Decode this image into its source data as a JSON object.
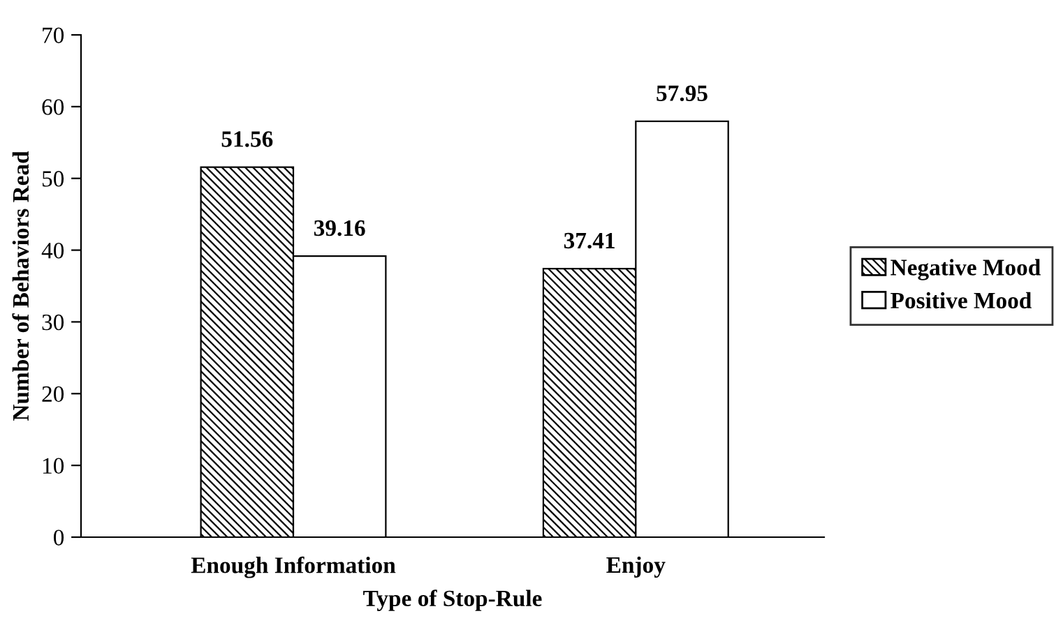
{
  "chart_data": {
    "type": "bar",
    "xlabel": "Type of Stop-Rule",
    "ylabel": "Number of Behaviors Read",
    "categories": [
      "Enough Information",
      "Enjoy"
    ],
    "series": [
      {
        "name": "Negative Mood",
        "color": "#000000",
        "values": [
          51.56,
          37.41
        ]
      },
      {
        "name": "Positive Mood",
        "color": "#ffffff",
        "values": [
          39.16,
          57.95
        ]
      }
    ],
    "ylim": [
      0,
      70
    ],
    "yticks": [
      0,
      10,
      20,
      30,
      40,
      50,
      60,
      70
    ],
    "data_labels": true,
    "legend": "right",
    "grid": false
  }
}
